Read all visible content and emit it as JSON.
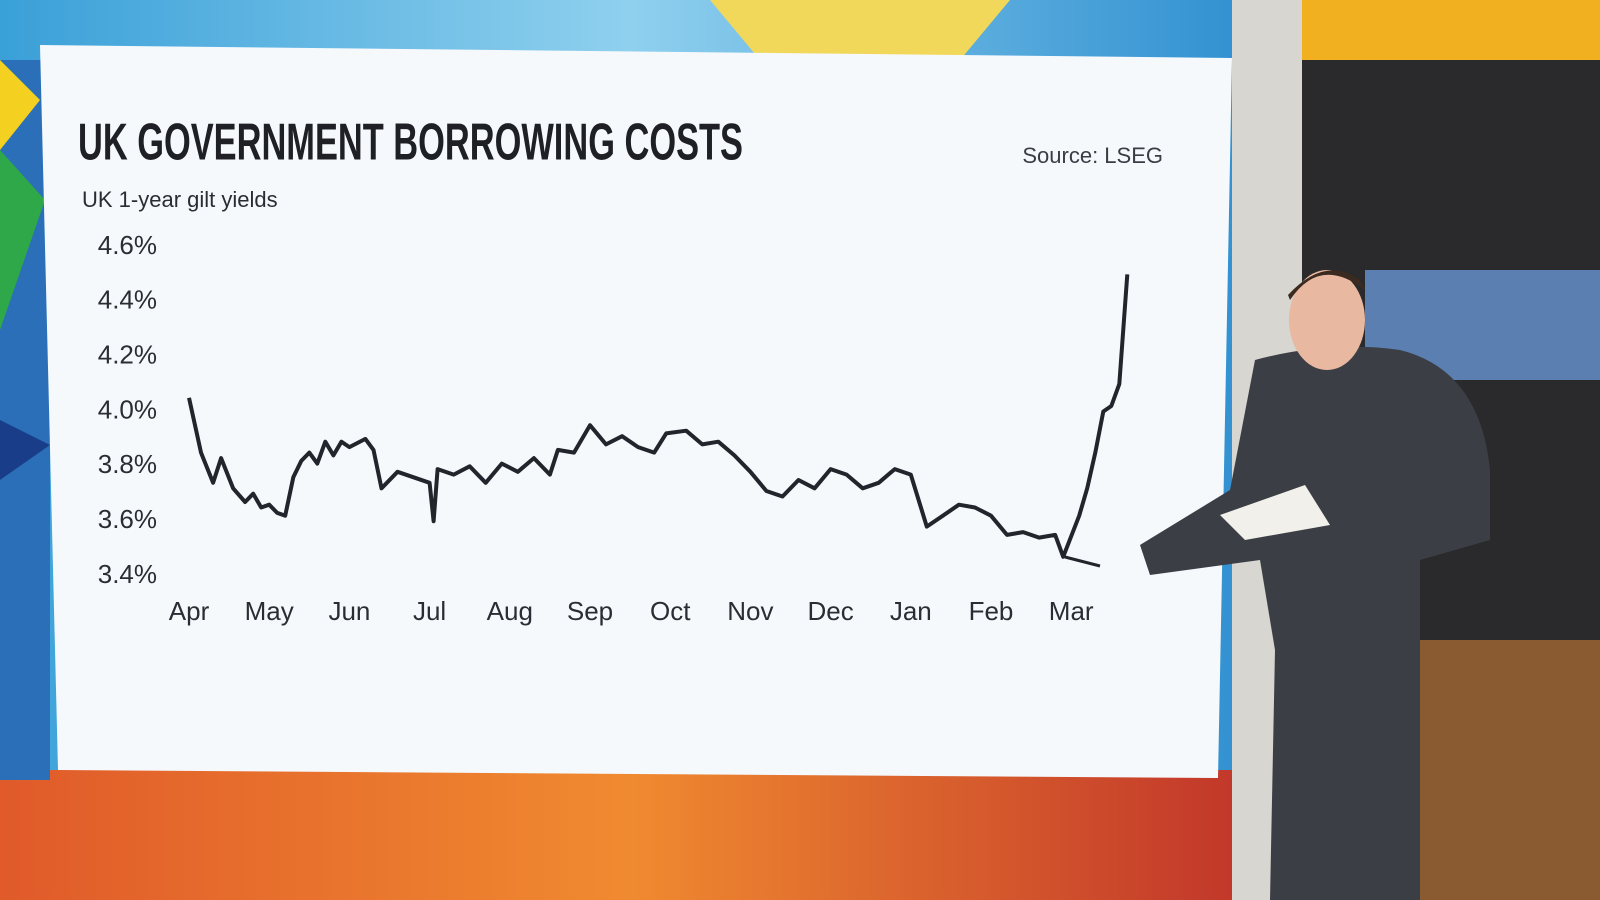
{
  "chart_data": {
    "type": "line",
    "title": "UK GOVERNMENT BORROWING COSTS",
    "subtitle": "UK 1-year gilt yields",
    "source": "Source: LSEG",
    "color": "#22252b",
    "xlim": [
      0,
      12
    ],
    "xticks": [
      {
        "value": 0,
        "label": "Apr"
      },
      {
        "value": 1,
        "label": "May"
      },
      {
        "value": 2,
        "label": "Jun"
      },
      {
        "value": 3,
        "label": "Jul"
      },
      {
        "value": 4,
        "label": "Aug"
      },
      {
        "value": 5,
        "label": "Sep"
      },
      {
        "value": 6,
        "label": "Oct"
      },
      {
        "value": 7,
        "label": "Nov"
      },
      {
        "value": 8,
        "label": "Dec"
      },
      {
        "value": 9,
        "label": "Jan"
      },
      {
        "value": 10,
        "label": "Feb"
      },
      {
        "value": 11,
        "label": "Mar"
      }
    ],
    "ylim": [
      3.4,
      4.6
    ],
    "yticks": [
      {
        "value": 3.4,
        "label": "3.4%"
      },
      {
        "value": 3.6,
        "label": "3.6%"
      },
      {
        "value": 3.8,
        "label": "3.8%"
      },
      {
        "value": 4.0,
        "label": "4.0%"
      },
      {
        "value": 4.2,
        "label": "4.2%"
      },
      {
        "value": 4.4,
        "label": "4.4%"
      },
      {
        "value": 4.6,
        "label": "4.6%"
      }
    ],
    "x": [
      0,
      0.15,
      0.3,
      0.4,
      0.55,
      0.7,
      0.8,
      0.9,
      1.0,
      1.1,
      1.2,
      1.3,
      1.4,
      1.5,
      1.6,
      1.7,
      1.8,
      1.9,
      2.0,
      2.2,
      2.3,
      2.4,
      2.6,
      2.8,
      3.0,
      3.05,
      3.1,
      3.3,
      3.5,
      3.7,
      3.9,
      4.1,
      4.3,
      4.5,
      4.6,
      4.8,
      5.0,
      5.2,
      5.4,
      5.6,
      5.8,
      5.95,
      6.2,
      6.4,
      6.6,
      6.8,
      7.0,
      7.2,
      7.4,
      7.6,
      7.8,
      8.0,
      8.2,
      8.4,
      8.6,
      8.8,
      9.0,
      9.2,
      9.4,
      9.6,
      9.8,
      10.0,
      10.2,
      10.4,
      10.6,
      10.8,
      10.9,
      11.1,
      11.2,
      11.3,
      11.4,
      11.5,
      11.6,
      11.7
    ],
    "values": [
      4.05,
      3.85,
      3.74,
      3.83,
      3.72,
      3.67,
      3.7,
      3.65,
      3.66,
      3.63,
      3.62,
      3.76,
      3.82,
      3.85,
      3.81,
      3.89,
      3.84,
      3.89,
      3.87,
      3.9,
      3.86,
      3.72,
      3.78,
      3.76,
      3.74,
      3.6,
      3.79,
      3.77,
      3.8,
      3.74,
      3.81,
      3.78,
      3.83,
      3.77,
      3.86,
      3.85,
      3.95,
      3.88,
      3.91,
      3.87,
      3.85,
      3.92,
      3.93,
      3.88,
      3.89,
      3.84,
      3.78,
      3.71,
      3.69,
      3.75,
      3.72,
      3.79,
      3.77,
      3.72,
      3.74,
      3.79,
      3.77,
      3.58,
      3.62,
      3.66,
      3.65,
      3.62,
      3.55,
      3.56,
      3.54,
      3.55,
      3.47,
      3.62,
      3.72,
      3.85,
      4.0,
      4.02,
      4.1,
      4.5
    ]
  }
}
